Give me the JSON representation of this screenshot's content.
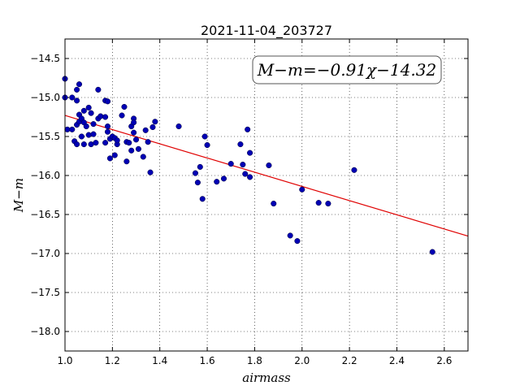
{
  "chart_data": {
    "type": "scatter",
    "title": "2021-11-04_203727",
    "xlabel": "airmass",
    "ylabel": "M−m",
    "xlim": [
      1.0,
      2.7
    ],
    "ylim": [
      -18.25,
      -14.25
    ],
    "x_ticks": [
      "1.0",
      "1.2",
      "1.4",
      "1.6",
      "1.8",
      "2.0",
      "2.2",
      "2.4",
      "2.6"
    ],
    "y_ticks": [
      "−14.5",
      "−15.0",
      "−15.5",
      "−16.0",
      "−16.5",
      "−17.0",
      "−17.5",
      "−18.0"
    ],
    "grid": true,
    "annotation": "M−m=−0.91χ−14.32",
    "fit": {
      "slope": -0.91,
      "intercept": -14.32,
      "color": "#e00000"
    },
    "point_color": "#0000b4",
    "points": [
      [
        1.0,
        -14.76
      ],
      [
        1.0,
        -15.0
      ],
      [
        1.01,
        -15.41
      ],
      [
        1.03,
        -15.0
      ],
      [
        1.03,
        -15.41
      ],
      [
        1.04,
        -15.56
      ],
      [
        1.05,
        -15.04
      ],
      [
        1.05,
        -14.9
      ],
      [
        1.05,
        -15.6
      ],
      [
        1.05,
        -15.35
      ],
      [
        1.06,
        -15.31
      ],
      [
        1.06,
        -15.22
      ],
      [
        1.06,
        -14.83
      ],
      [
        1.07,
        -15.27
      ],
      [
        1.07,
        -15.5
      ],
      [
        1.08,
        -15.6
      ],
      [
        1.08,
        -15.32
      ],
      [
        1.08,
        -15.17
      ],
      [
        1.09,
        -15.37
      ],
      [
        1.1,
        -15.48
      ],
      [
        1.1,
        -15.13
      ],
      [
        1.11,
        -15.6
      ],
      [
        1.11,
        -15.2
      ],
      [
        1.12,
        -15.34
      ],
      [
        1.12,
        -15.47
      ],
      [
        1.13,
        -15.58
      ],
      [
        1.14,
        -14.9
      ],
      [
        1.14,
        -15.27
      ],
      [
        1.15,
        -15.24
      ],
      [
        1.17,
        -15.58
      ],
      [
        1.17,
        -15.25
      ],
      [
        1.17,
        -15.04
      ],
      [
        1.18,
        -15.05
      ],
      [
        1.18,
        -15.44
      ],
      [
        1.18,
        -15.37
      ],
      [
        1.19,
        -15.78
      ],
      [
        1.19,
        -15.53
      ],
      [
        1.2,
        -15.5
      ],
      [
        1.21,
        -15.74
      ],
      [
        1.21,
        -15.52
      ],
      [
        1.22,
        -15.6
      ],
      [
        1.22,
        -15.55
      ],
      [
        1.24,
        -15.23
      ],
      [
        1.25,
        -15.12
      ],
      [
        1.26,
        -15.82
      ],
      [
        1.26,
        -15.57
      ],
      [
        1.27,
        -15.58
      ],
      [
        1.28,
        -15.37
      ],
      [
        1.28,
        -15.68
      ],
      [
        1.29,
        -15.27
      ],
      [
        1.29,
        -15.32
      ],
      [
        1.29,
        -15.45
      ],
      [
        1.3,
        -15.54
      ],
      [
        1.31,
        -15.66
      ],
      [
        1.33,
        -15.76
      ],
      [
        1.34,
        -15.42
      ],
      [
        1.35,
        -15.57
      ],
      [
        1.36,
        -15.96
      ],
      [
        1.37,
        -15.38
      ],
      [
        1.38,
        -15.31
      ],
      [
        1.48,
        -15.37
      ],
      [
        1.55,
        -15.97
      ],
      [
        1.56,
        -16.09
      ],
      [
        1.57,
        -15.89
      ],
      [
        1.58,
        -16.3
      ],
      [
        1.59,
        -15.5
      ],
      [
        1.6,
        -15.61
      ],
      [
        1.64,
        -16.08
      ],
      [
        1.67,
        -16.04
      ],
      [
        1.7,
        -15.85
      ],
      [
        1.74,
        -15.6
      ],
      [
        1.75,
        -15.86
      ],
      [
        1.76,
        -15.98
      ],
      [
        1.77,
        -15.41
      ],
      [
        1.78,
        -15.71
      ],
      [
        1.78,
        -16.02
      ],
      [
        1.86,
        -15.87
      ],
      [
        1.88,
        -16.36
      ],
      [
        2.0,
        -16.18
      ],
      [
        2.07,
        -16.35
      ],
      [
        2.11,
        -16.36
      ],
      [
        2.22,
        -15.93
      ],
      [
        1.95,
        -16.77
      ],
      [
        1.98,
        -16.84
      ],
      [
        2.55,
        -16.98
      ]
    ]
  }
}
